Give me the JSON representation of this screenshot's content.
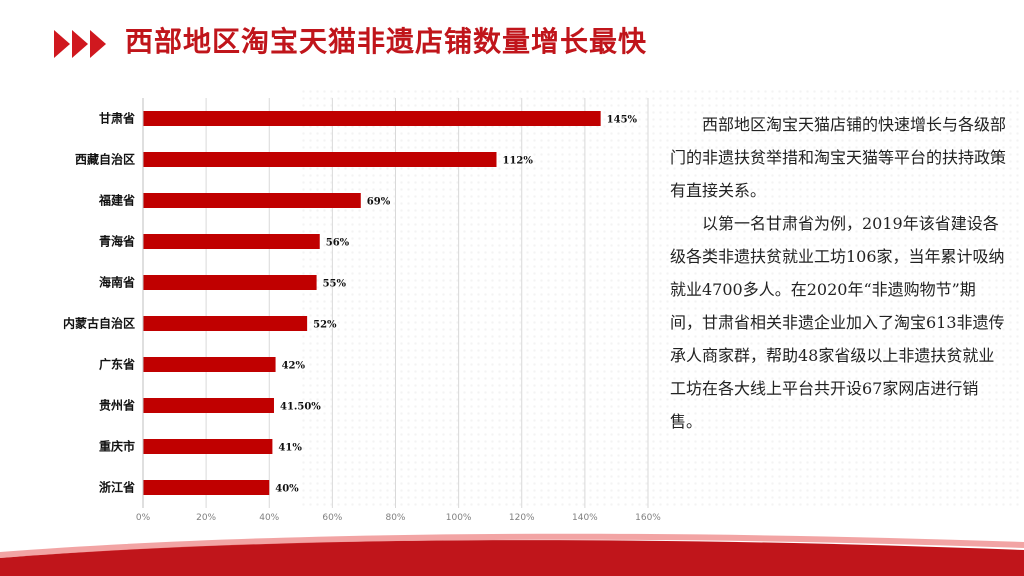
{
  "page": {
    "title": "西部地区淘宝天猫非遗店铺数量增长最快",
    "colors": {
      "accent": "#c0151b",
      "bar": "#c00000",
      "grid": "#d9d9d9"
    }
  },
  "description": {
    "paragraphs": [
      "西部地区淘宝天猫店铺的快速增长与各级部门的非遗扶贫举措和淘宝天猫等平台的扶持政策有直接关系。",
      "以第一名甘肃省为例，2019年该省建设各级各类非遗扶贫就业工坊106家，当年累计吸纳就业4700多人。在2020年“非遗购物节”期间，甘肃省相关非遗企业加入了淘宝613非遗传承人商家群，帮助48家省级以上非遗扶贫就业工坊在各大线上平台共开设67家网店进行销售。"
    ]
  },
  "chart_data": {
    "type": "bar",
    "orientation": "horizontal",
    "categories": [
      "甘肃省",
      "西藏自治区",
      "福建省",
      "青海省",
      "海南省",
      "内蒙古自治区",
      "广东省",
      "贵州省",
      "重庆市",
      "浙江省"
    ],
    "values": [
      145,
      112,
      69,
      56,
      55,
      52,
      42,
      41.5,
      41,
      40
    ],
    "data_labels": [
      "145%",
      "112%",
      "69%",
      "56%",
      "55%",
      "52%",
      "42%",
      "41.50%",
      "41%",
      "40%"
    ],
    "x_ticks": [
      "0%",
      "20%",
      "40%",
      "60%",
      "80%",
      "100%",
      "120%",
      "140%",
      "160%"
    ],
    "xlim": [
      0,
      160
    ],
    "grid": true,
    "legend": "none"
  }
}
